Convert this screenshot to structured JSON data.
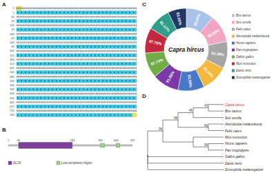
{
  "chart_data": {
    "type": "pie",
    "title": "Capra hircus",
    "categories": [
      "Bos taurus",
      "Sus scrofa",
      "Felis catus",
      "Ailuropoda melanoleuca",
      "Homo sapiens",
      "Pan troglodytes",
      "Gallus gallus",
      "Mus musculus",
      "Danio rerio",
      "Drosophila melanogaster"
    ],
    "values": [
      96.6,
      95.89,
      93.39,
      92.44,
      91.58,
      91.55,
      87.73,
      87.7,
      81.14,
      63.55
    ],
    "value_labels": [
      "96.60%",
      "95.89%",
      "93.39%",
      "92.44%",
      "91.58%",
      "91.55%",
      "87.73%",
      "87.70%",
      "81.14%",
      "63.55%"
    ],
    "colors": [
      "#a9c2ea",
      "#f3a6c2",
      "#a6a6a6",
      "#f6b83c",
      "#4a78c8",
      "#7a3aa8",
      "#70ad47",
      "#c5283d",
      "#2e9d8a",
      "#1f3864"
    ],
    "data_labels": true,
    "legend": "right"
  },
  "panel_labels": [
    "A",
    "B",
    "C",
    "D"
  ],
  "alignment": {
    "rows": [
      {
        "nt": 1,
        "aa": 1
      },
      {
        "nt": 61,
        "aa": 21
      },
      {
        "nt": 121,
        "aa": 41
      },
      {
        "nt": 181,
        "aa": 61
      },
      {
        "nt": 241,
        "aa": 81
      },
      {
        "nt": 301,
        "aa": 101
      },
      {
        "nt": 361,
        "aa": 121
      },
      {
        "nt": 421,
        "aa": 141
      },
      {
        "nt": 481,
        "aa": 161
      },
      {
        "nt": 541,
        "aa": 181
      },
      {
        "nt": 601,
        "aa": 201
      },
      {
        "nt": 661,
        "aa": 221
      },
      {
        "nt": 721,
        "aa": 241
      }
    ]
  },
  "domain_map": {
    "start": 1,
    "end": 472,
    "position_labels": [
      1,
      40,
      244,
      351,
      410,
      472
    ],
    "features": [
      {
        "name": "SLC6",
        "color": "#7b3f9e",
        "regions": [
          [
            40,
            244
          ]
        ]
      },
      {
        "name": "Low complexity region",
        "color": "#9fd08a",
        "regions": [
          [
            351,
            366
          ],
          [
            410,
            424
          ]
        ]
      }
    ]
  },
  "tree": {
    "children": [
      {
        "support": 96,
        "children": [
          {
            "support": 98,
            "children": [
              {
                "support": 45,
                "children": [
                  {
                    "support": 43,
                    "children": [
                      {
                        "name": "Capra hircus",
                        "color": "#e0201b"
                      },
                      {
                        "name": "Bos taurus"
                      }
                    ]
                  },
                  {
                    "name": "Sus scrofa"
                  }
                ]
              },
              {
                "support": 66,
                "children": [
                  {
                    "name": "Ailuropoda melanoleuca"
                  },
                  {
                    "name": "Felis catus"
                  }
                ]
              }
            ]
          },
          {
            "children": [
              {
                "name": "Mus musculus"
              },
              {
                "support": 99,
                "children": [
                  {
                    "name": "Homo sapiens"
                  },
                  {
                    "name": "Pan troglodytes"
                  }
                ]
              }
            ]
          }
        ]
      },
      {
        "name": "Gallus gallus"
      },
      {
        "name": "Danio rerio"
      },
      {
        "name": "Drosophila melanogaster"
      }
    ]
  }
}
